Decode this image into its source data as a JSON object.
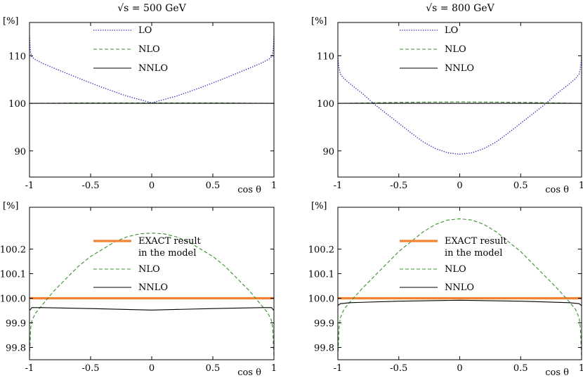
{
  "figure": {
    "col_titles": [
      "√s = 500 GeV",
      "√s = 800 GeV"
    ],
    "x_label": "cos θ",
    "y_unit": "[%]"
  },
  "colors": {
    "LO": "#1f1fbf",
    "NLO": "#3a8f2f",
    "NNLO": "#000000",
    "EXACT": "#f58231"
  },
  "chart_data": [
    {
      "id": "top-500",
      "type": "line",
      "title": "√s = 500 GeV",
      "xlabel": "cos θ",
      "ylabel": "[%]",
      "xlim": [
        -1,
        1
      ],
      "ylim": [
        84.5,
        117
      ],
      "xticks": [
        -1,
        -0.5,
        0,
        0.5,
        1
      ],
      "xtick_labels": [
        "-1",
        "-0.5",
        "0",
        "0.5",
        "1"
      ],
      "yticks": [
        90,
        100,
        110
      ],
      "ytick_labels": [
        "90",
        "100",
        "110"
      ],
      "legend": {
        "position": "top-center",
        "entries": [
          "LO",
          "NLO",
          "NNLO"
        ]
      },
      "series": [
        {
          "name": "LO",
          "style": "dotted",
          "color": "#1f1fbf",
          "x": [
            -1,
            -0.995,
            -0.99,
            -0.98,
            -0.96,
            -0.9,
            -0.8,
            -0.6,
            -0.4,
            -0.2,
            0,
            0.2,
            0.4,
            0.6,
            0.8,
            0.9,
            0.96,
            0.98,
            0.99,
            0.995,
            1
          ],
          "y": [
            114.3,
            111.6,
            110.6,
            109.8,
            109.3,
            108.5,
            107.4,
            105.3,
            103.3,
            101.5,
            100.1,
            101.5,
            103.3,
            105.3,
            107.4,
            108.5,
            109.3,
            109.8,
            110.6,
            111.6,
            114.3
          ]
        },
        {
          "name": "NLO",
          "style": "dashed",
          "color": "#3a8f2f",
          "x": [
            -1,
            -0.5,
            0,
            0.5,
            1
          ],
          "y": [
            100.0,
            100.1,
            100.1,
            100.1,
            100.0
          ]
        },
        {
          "name": "NNLO",
          "style": "solid",
          "color": "#000000",
          "x": [
            -1,
            0,
            1
          ],
          "y": [
            100.0,
            100.0,
            100.0
          ]
        }
      ]
    },
    {
      "id": "top-800",
      "type": "line",
      "title": "√s = 800 GeV",
      "xlabel": "cos θ",
      "ylabel": "[%]",
      "xlim": [
        -1,
        1
      ],
      "ylim": [
        84.5,
        117
      ],
      "xticks": [
        -1,
        -0.5,
        0,
        0.5,
        1
      ],
      "xtick_labels": [
        "-1",
        "-0.5",
        "0",
        "0.5",
        "1"
      ],
      "yticks": [
        90,
        100,
        110
      ],
      "ytick_labels": [
        "90",
        "100",
        "110"
      ],
      "legend": {
        "position": "top-center",
        "entries": [
          "LO",
          "NLO",
          "NNLO"
        ]
      },
      "series": [
        {
          "name": "LO",
          "style": "dotted",
          "color": "#1f1fbf",
          "x": [
            -1,
            -0.995,
            -0.99,
            -0.98,
            -0.95,
            -0.9,
            -0.8,
            -0.7,
            -0.6,
            -0.5,
            -0.4,
            -0.3,
            -0.2,
            -0.1,
            0,
            0.1,
            0.2,
            0.3,
            0.4,
            0.5,
            0.6,
            0.7,
            0.8,
            0.9,
            0.95,
            0.98,
            0.99,
            0.995,
            1
          ],
          "y": [
            110.0,
            108.3,
            107.4,
            106.2,
            105.2,
            104.1,
            102.1,
            99.8,
            97.8,
            95.8,
            93.8,
            91.9,
            90.5,
            89.6,
            89.3,
            89.6,
            90.5,
            91.9,
            93.8,
            95.8,
            97.8,
            99.8,
            102.1,
            104.1,
            105.2,
            106.2,
            107.4,
            108.3,
            110.0
          ]
        },
        {
          "name": "NLO",
          "style": "dashed",
          "color": "#3a8f2f",
          "x": [
            -1,
            -0.5,
            0,
            0.5,
            1
          ],
          "y": [
            100.0,
            100.2,
            100.3,
            100.2,
            100.0
          ]
        },
        {
          "name": "NNLO",
          "style": "solid",
          "color": "#000000",
          "x": [
            -1,
            0,
            1
          ],
          "y": [
            100.0,
            100.0,
            100.0
          ]
        }
      ]
    },
    {
      "id": "bottom-500",
      "type": "line",
      "title": "",
      "xlabel": "cos θ",
      "ylabel": "[%]",
      "xlim": [
        -1,
        1
      ],
      "ylim": [
        99.75,
        100.37
      ],
      "xticks": [
        -1,
        -0.5,
        0,
        0.5,
        1
      ],
      "xtick_labels": [
        "-1",
        "-0.5",
        "0",
        "0.5",
        "1"
      ],
      "yticks": [
        99.8,
        99.9,
        100.0,
        100.1,
        100.2
      ],
      "ytick_labels": [
        "99.8",
        "99.9",
        "100.0",
        "100.1",
        "100.2"
      ],
      "legend": {
        "position": "top-center",
        "entries": [
          "EXACT result",
          "in the model",
          "NLO",
          "NNLO"
        ]
      },
      "series": [
        {
          "name": "EXACT result in the model",
          "style": "thick",
          "color": "#f58231",
          "x": [
            -1,
            1
          ],
          "y": [
            100.0,
            100.0
          ]
        },
        {
          "name": "NLO",
          "style": "dashed",
          "color": "#3a8f2f",
          "x": [
            -1,
            -0.99,
            -0.98,
            -0.95,
            -0.9,
            -0.8,
            -0.7,
            -0.6,
            -0.5,
            -0.4,
            -0.3,
            -0.2,
            -0.1,
            0,
            0.1,
            0.2,
            0.3,
            0.4,
            0.5,
            0.6,
            0.7,
            0.8,
            0.9,
            0.95,
            0.98,
            0.99,
            1
          ],
          "y": [
            99.76,
            99.88,
            99.91,
            99.94,
            99.97,
            100.03,
            100.08,
            100.13,
            100.17,
            100.2,
            100.23,
            100.25,
            100.262,
            100.265,
            100.262,
            100.25,
            100.23,
            100.2,
            100.17,
            100.13,
            100.08,
            100.03,
            99.97,
            99.94,
            99.91,
            99.88,
            99.76
          ]
        },
        {
          "name": "NNLO",
          "style": "solid",
          "color": "#000000",
          "x": [
            -1,
            -0.98,
            -0.9,
            -0.5,
            0,
            0.5,
            0.9,
            0.98,
            1
          ],
          "y": [
            99.95,
            99.962,
            99.962,
            99.958,
            99.952,
            99.958,
            99.962,
            99.962,
            99.95
          ]
        }
      ]
    },
    {
      "id": "bottom-800",
      "type": "line",
      "title": "",
      "xlabel": "cos θ",
      "ylabel": "[%]",
      "xlim": [
        -1,
        1
      ],
      "ylim": [
        99.75,
        100.37
      ],
      "xticks": [
        -1,
        -0.5,
        0,
        0.5,
        1
      ],
      "xtick_labels": [
        "-1",
        "-0.5",
        "0",
        "0.5",
        "1"
      ],
      "yticks": [
        99.8,
        99.9,
        100.0,
        100.1,
        100.2
      ],
      "ytick_labels": [
        "99.8",
        "99.9",
        "100.0",
        "100.1",
        "100.2"
      ],
      "legend": {
        "position": "top-center",
        "entries": [
          "EXACT result",
          "in the model",
          "NLO",
          "NNLO"
        ]
      },
      "series": [
        {
          "name": "EXACT result in the model",
          "style": "thick",
          "color": "#f58231",
          "x": [
            -1,
            1
          ],
          "y": [
            100.0,
            100.0
          ]
        },
        {
          "name": "NLO",
          "style": "dashed",
          "color": "#3a8f2f",
          "x": [
            -1,
            -0.99,
            -0.98,
            -0.95,
            -0.9,
            -0.8,
            -0.7,
            -0.6,
            -0.5,
            -0.4,
            -0.3,
            -0.2,
            -0.1,
            0,
            0.1,
            0.2,
            0.3,
            0.4,
            0.5,
            0.6,
            0.7,
            0.8,
            0.9,
            0.95,
            0.98,
            0.99,
            1
          ],
          "y": [
            99.76,
            99.88,
            99.92,
            99.955,
            99.985,
            100.04,
            100.09,
            100.14,
            100.19,
            100.23,
            100.27,
            100.3,
            100.318,
            100.323,
            100.318,
            100.3,
            100.27,
            100.23,
            100.19,
            100.14,
            100.09,
            100.04,
            99.985,
            99.955,
            99.92,
            99.88,
            99.76
          ]
        },
        {
          "name": "NNLO",
          "style": "solid",
          "color": "#000000",
          "x": [
            -1,
            -0.98,
            -0.9,
            -0.5,
            0,
            0.5,
            0.9,
            0.98,
            1
          ],
          "y": [
            99.97,
            99.978,
            99.982,
            99.988,
            99.992,
            99.988,
            99.982,
            99.978,
            99.97
          ]
        }
      ]
    }
  ]
}
